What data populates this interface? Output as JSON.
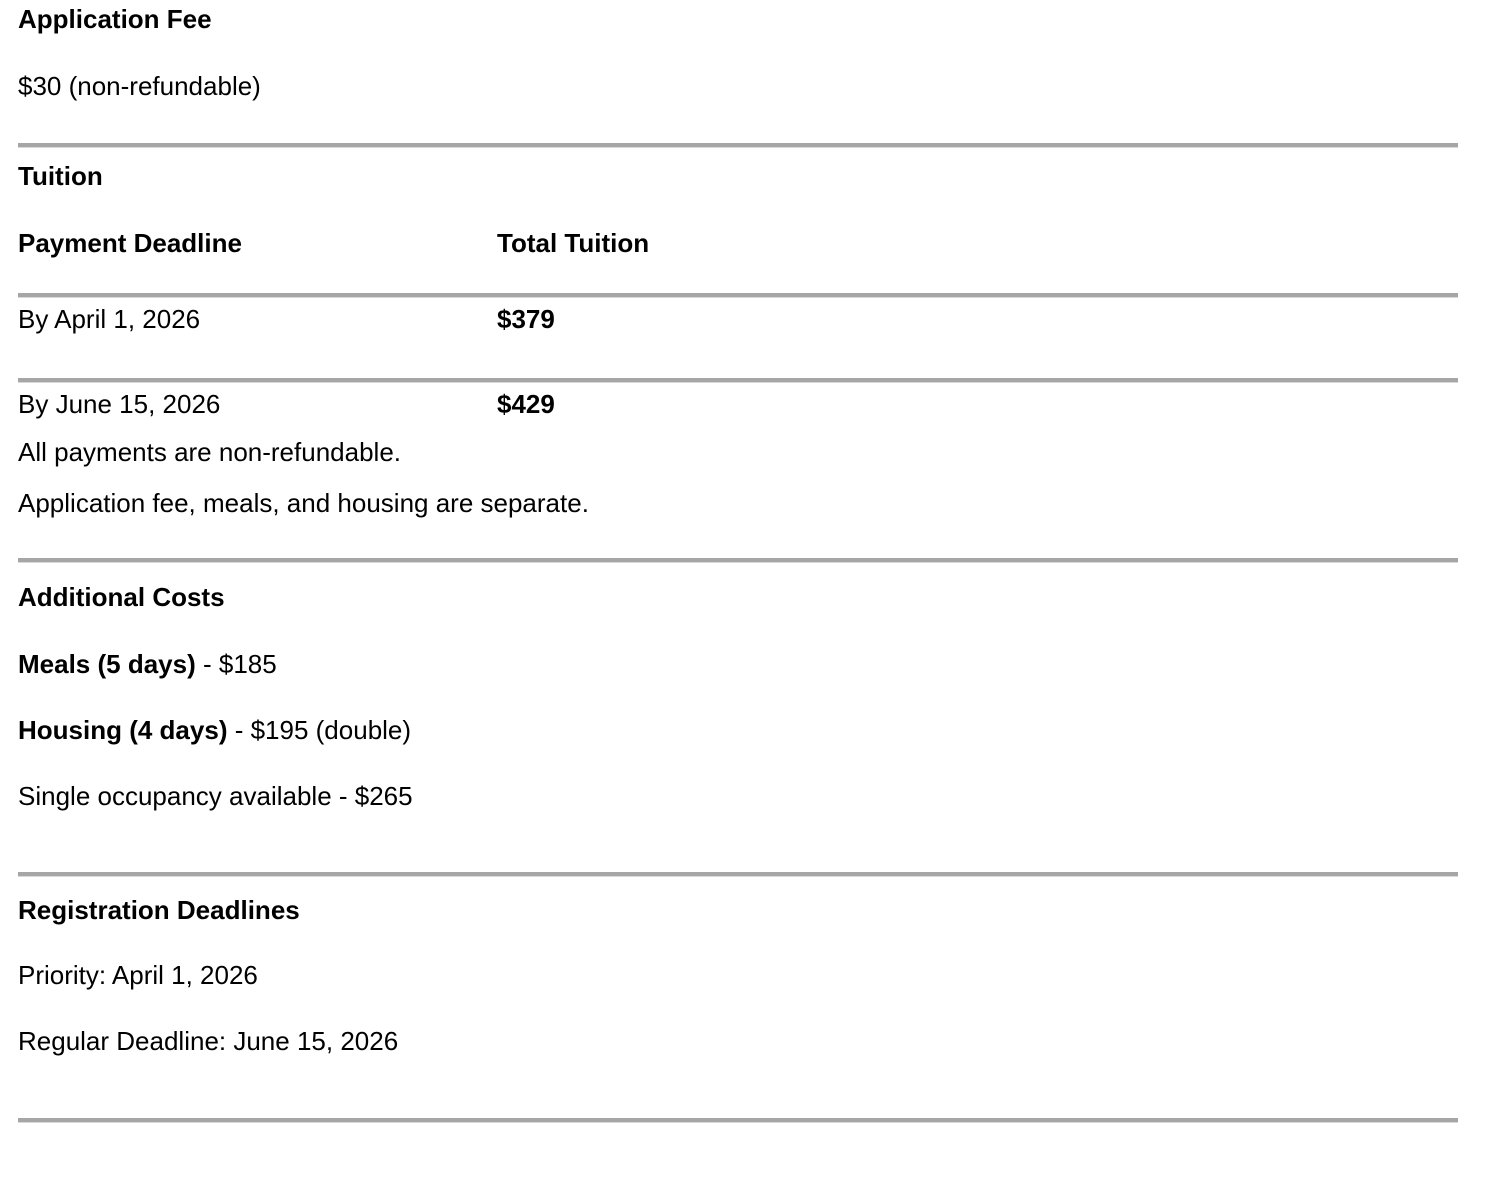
{
  "colors": {
    "background": "#ffffff",
    "text": "#000000",
    "divider": "#a6a6a6"
  },
  "application_fee": {
    "heading": "Application Fee",
    "value": "$30 (non-refundable)"
  },
  "tuition": {
    "heading": "Tuition",
    "table": {
      "columns": [
        "Payment Deadline",
        "Total Tuition"
      ],
      "rows": [
        {
          "deadline": "By April 1, 2026",
          "total": "$379"
        },
        {
          "deadline": "By June 15, 2026",
          "total": "$429"
        }
      ]
    },
    "notes": [
      "All payments are non-refundable.",
      "Application fee, meals, and housing are separate."
    ]
  },
  "additional_costs": {
    "heading": "Additional Costs",
    "items": [
      {
        "label": "Meals (5 days)",
        "rest": " - $185"
      },
      {
        "label": "Housing (4 days)",
        "rest": " - $195 (double)"
      },
      {
        "text": "Single occupancy available - $265"
      }
    ]
  },
  "registration_deadlines": {
    "heading": "Registration Deadlines",
    "items": [
      "Priority: April 1, 2026",
      "Regular Deadline: June 15, 2026"
    ]
  }
}
